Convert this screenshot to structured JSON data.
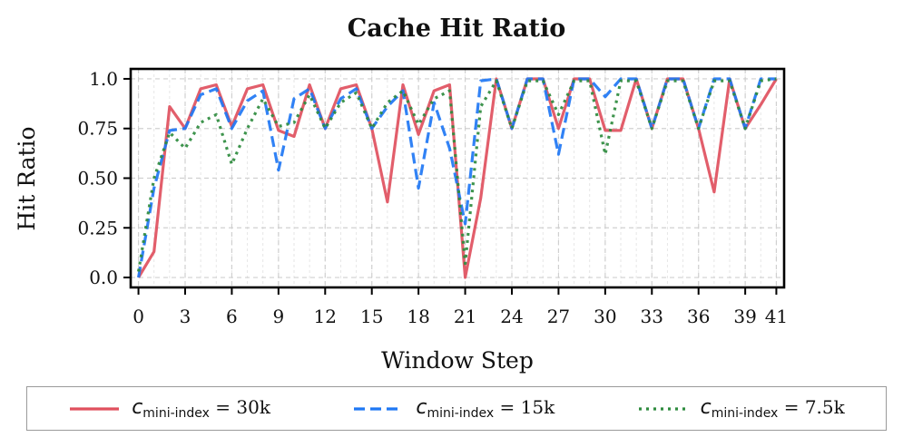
{
  "chart_data": {
    "type": "line",
    "title": "Cache Hit Ratio",
    "xlabel": "Window Step",
    "ylabel": "Hit Ratio",
    "xlim": [
      -0.5,
      41.5
    ],
    "ylim": [
      -0.05,
      1.05
    ],
    "xticks": [
      0,
      3,
      6,
      9,
      12,
      15,
      18,
      21,
      24,
      27,
      30,
      33,
      36,
      39,
      41
    ],
    "xtick_labels": [
      "0",
      "3",
      "6",
      "9",
      "12",
      "15",
      "18",
      "21",
      "24",
      "27",
      "30",
      "33",
      "36",
      "39",
      "41"
    ],
    "yticks": [
      0.0,
      0.25,
      0.5,
      0.75,
      1.0
    ],
    "ytick_labels": [
      "0.0",
      "0.25",
      "0.50",
      "0.75",
      "1.0"
    ],
    "grid": true,
    "legend_position": "bottom",
    "x": [
      0,
      1,
      2,
      3,
      4,
      5,
      6,
      7,
      8,
      9,
      10,
      11,
      12,
      13,
      14,
      15,
      16,
      17,
      18,
      19,
      20,
      21,
      22,
      23,
      24,
      25,
      26,
      27,
      28,
      29,
      30,
      31,
      32,
      33,
      34,
      35,
      36,
      37,
      38,
      39,
      40,
      41
    ],
    "series": [
      {
        "name_prefix": "c",
        "name_sub": "mini-index",
        "name_suffix": " = 30k",
        "color": "#e0505e",
        "style": "solid",
        "values": [
          0.0,
          0.13,
          0.86,
          0.75,
          0.95,
          0.97,
          0.76,
          0.95,
          0.97,
          0.74,
          0.71,
          0.97,
          0.75,
          0.95,
          0.97,
          0.75,
          0.38,
          0.97,
          0.72,
          0.94,
          0.97,
          0.0,
          0.4,
          1.0,
          0.75,
          1.0,
          1.0,
          0.75,
          1.0,
          1.0,
          0.74,
          0.74,
          1.0,
          0.75,
          1.0,
          1.0,
          0.75,
          0.43,
          1.0,
          0.75,
          0.87,
          1.0
        ]
      },
      {
        "name_prefix": "c",
        "name_sub": "mini-index",
        "name_suffix": " = 15k",
        "color": "#1f77f4",
        "style": "dashed",
        "values": [
          0.0,
          0.45,
          0.74,
          0.75,
          0.92,
          0.95,
          0.75,
          0.89,
          0.94,
          0.54,
          0.9,
          0.95,
          0.75,
          0.9,
          0.95,
          0.75,
          0.86,
          0.94,
          0.45,
          0.88,
          0.65,
          0.27,
          0.99,
          1.0,
          0.75,
          1.0,
          1.0,
          0.62,
          1.0,
          1.0,
          0.91,
          1.0,
          1.0,
          0.75,
          1.0,
          1.0,
          0.75,
          1.0,
          1.0,
          0.75,
          1.0,
          1.0
        ]
      },
      {
        "name_prefix": "c",
        "name_sub": "mini-index",
        "name_suffix": " = 7.5k",
        "color": "#2e8b3e",
        "style": "dotted",
        "values": [
          0.03,
          0.5,
          0.73,
          0.65,
          0.78,
          0.82,
          0.57,
          0.75,
          0.9,
          0.76,
          0.78,
          0.92,
          0.75,
          0.88,
          0.93,
          0.75,
          0.88,
          0.94,
          0.77,
          0.9,
          0.94,
          0.07,
          0.86,
          0.99,
          0.75,
          0.99,
          0.99,
          0.82,
          0.99,
          0.99,
          0.62,
          0.99,
          0.99,
          0.75,
          0.99,
          0.99,
          0.75,
          0.99,
          0.99,
          0.75,
          0.99,
          1.0
        ]
      }
    ]
  }
}
